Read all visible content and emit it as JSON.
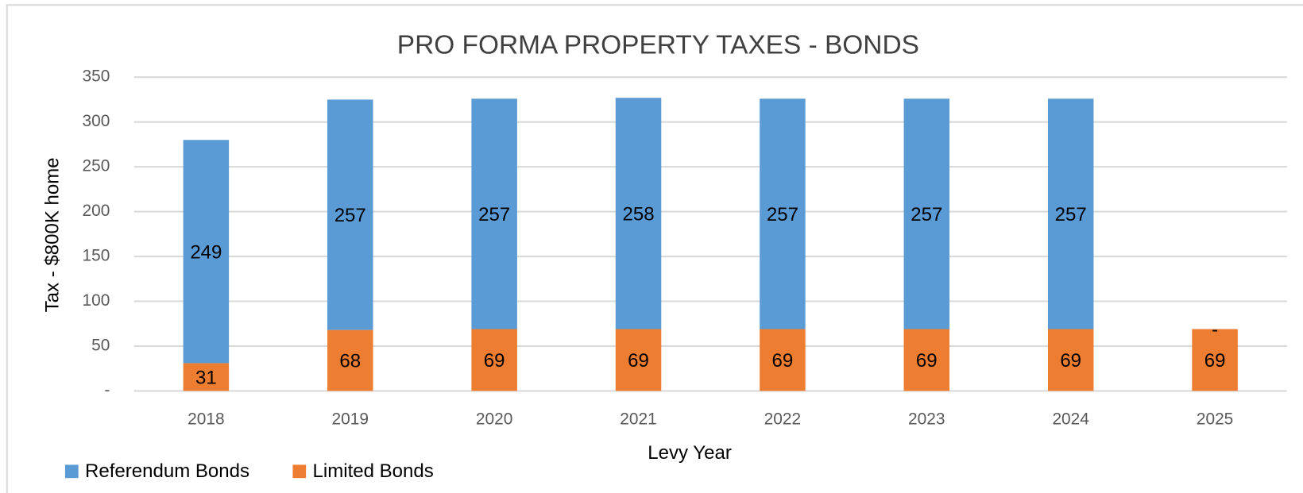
{
  "chart_data": {
    "type": "stacked_bar",
    "title": "PRO FORMA PROPERTY TAXES - BONDS",
    "x_label": "Levy Year",
    "y_label": "Tax - $800K home",
    "categories": [
      "2018",
      "2019",
      "2020",
      "2021",
      "2022",
      "2023",
      "2024",
      "2025"
    ],
    "series": [
      {
        "name": "Limited Bonds",
        "color": "#ed7d31",
        "values": [
          31,
          68,
          69,
          69,
          69,
          69,
          69,
          69
        ]
      },
      {
        "name": "Referendum Bonds",
        "color": "#5b9bd5",
        "values": [
          249,
          257,
          257,
          258,
          257,
          257,
          257,
          0
        ],
        "value_labels": [
          "249",
          "257",
          "257",
          "258",
          "257",
          "257",
          "257",
          "-"
        ]
      }
    ],
    "ylim": [
      0,
      350
    ],
    "yticks": [
      {
        "value": 0,
        "label": "-"
      },
      50,
      100,
      150,
      200,
      250,
      300,
      350
    ],
    "grid": true,
    "legend": "bottom-left"
  }
}
